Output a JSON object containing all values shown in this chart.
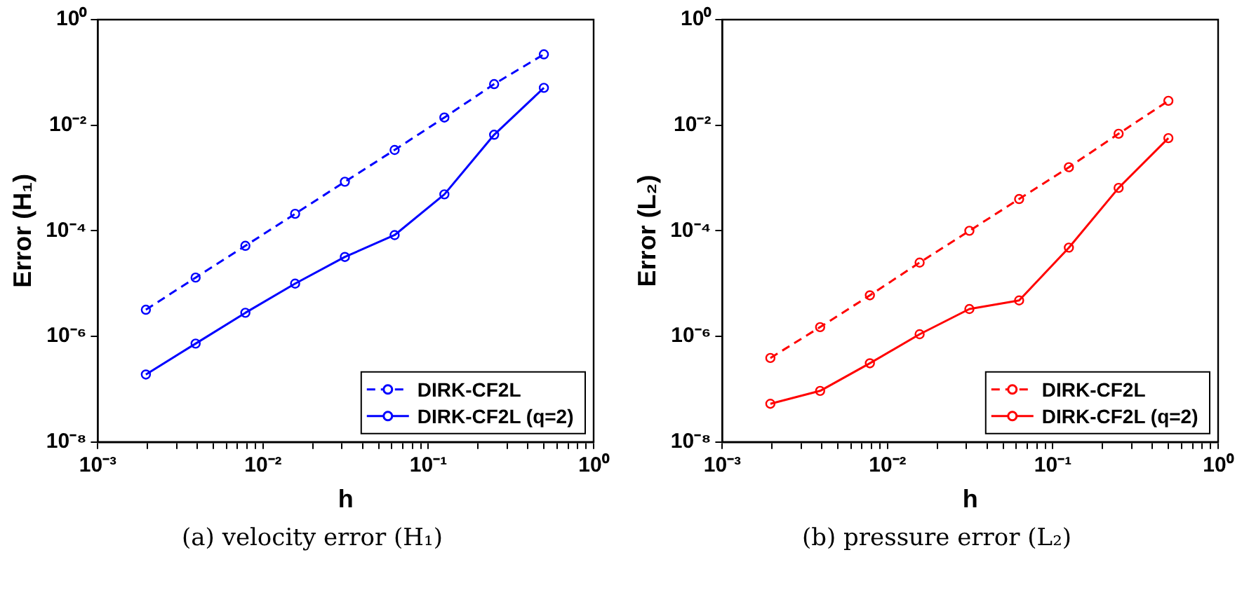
{
  "chart_data": [
    {
      "type": "line",
      "title": "(a) velocity error (H₁)",
      "xlabel": "h",
      "ylabel": "Error (H₁)",
      "log": "xy",
      "grid": false,
      "legend": "bottom right",
      "marker": "circle",
      "x": [
        0.001953125,
        0.00390625,
        0.0078125,
        0.015625,
        0.03125,
        0.0625,
        0.125,
        0.25,
        0.5
      ],
      "xlim": [
        0.001,
        1
      ],
      "ylim": [
        1e-08,
        1
      ],
      "xticks": [
        {
          "value": 0.001,
          "label": "10⁻³"
        },
        {
          "value": 0.002,
          "label": null
        },
        {
          "value": 0.003,
          "label": null
        },
        {
          "value": 0.004,
          "label": null
        },
        {
          "value": 0.005,
          "label": null
        },
        {
          "value": 0.006,
          "label": null
        },
        {
          "value": 0.007,
          "label": null
        },
        {
          "value": 0.008,
          "label": null
        },
        {
          "value": 0.009,
          "label": null
        },
        {
          "value": 0.01,
          "label": "10⁻²"
        },
        {
          "value": 0.02,
          "label": null
        },
        {
          "value": 0.03,
          "label": null
        },
        {
          "value": 0.04,
          "label": null
        },
        {
          "value": 0.05,
          "label": null
        },
        {
          "value": 0.06,
          "label": null
        },
        {
          "value": 0.07,
          "label": null
        },
        {
          "value": 0.08,
          "label": null
        },
        {
          "value": 0.09,
          "label": null
        },
        {
          "value": 0.1,
          "label": "10⁻¹"
        },
        {
          "value": 0.2,
          "label": null
        },
        {
          "value": 0.3,
          "label": null
        },
        {
          "value": 0.4,
          "label": null
        },
        {
          "value": 0.5,
          "label": null
        },
        {
          "value": 0.6,
          "label": null
        },
        {
          "value": 0.7,
          "label": null
        },
        {
          "value": 0.8,
          "label": null
        },
        {
          "value": 0.9,
          "label": null
        },
        {
          "value": 1,
          "label": "10⁰"
        }
      ],
      "yticks": [
        {
          "value": 1e-08,
          "label": "10⁻⁸"
        },
        {
          "value": 1e-06,
          "label": "10⁻⁶"
        },
        {
          "value": 0.0001,
          "label": "10⁻⁴"
        },
        {
          "value": 0.01,
          "label": "10⁻²"
        },
        {
          "value": 1,
          "label": "10⁰"
        }
      ],
      "series": [
        {
          "name": "DIRK-CF2L",
          "color": "#0000ff",
          "line_style": "dashed",
          "values": [
            3.2e-06,
            1.3e-05,
            5.2e-05,
            0.00021,
            0.00085,
            0.0034,
            0.014,
            0.06,
            0.22
          ]
        },
        {
          "name": "DIRK-CF2L (q=2)",
          "color": "#0000ff",
          "line_style": "solid",
          "values": [
            1.9e-07,
            7.3e-07,
            2.8e-06,
            1e-05,
            3.2e-05,
            8.3e-05,
            0.00049,
            0.0066,
            0.051
          ]
        }
      ]
    },
    {
      "type": "line",
      "title": "(b) pressure error (L₂)",
      "xlabel": "h",
      "ylabel": "Error (L₂)",
      "log": "xy",
      "grid": false,
      "legend": "bottom right",
      "marker": "circle",
      "x": [
        0.001953125,
        0.00390625,
        0.0078125,
        0.015625,
        0.03125,
        0.0625,
        0.125,
        0.25,
        0.5
      ],
      "xlim": [
        0.001,
        1
      ],
      "ylim": [
        1e-08,
        1
      ],
      "xticks": [
        {
          "value": 0.001,
          "label": "10⁻³"
        },
        {
          "value": 0.002,
          "label": null
        },
        {
          "value": 0.003,
          "label": null
        },
        {
          "value": 0.004,
          "label": null
        },
        {
          "value": 0.005,
          "label": null
        },
        {
          "value": 0.006,
          "label": null
        },
        {
          "value": 0.007,
          "label": null
        },
        {
          "value": 0.008,
          "label": null
        },
        {
          "value": 0.009,
          "label": null
        },
        {
          "value": 0.01,
          "label": "10⁻²"
        },
        {
          "value": 0.02,
          "label": null
        },
        {
          "value": 0.03,
          "label": null
        },
        {
          "value": 0.04,
          "label": null
        },
        {
          "value": 0.05,
          "label": null
        },
        {
          "value": 0.06,
          "label": null
        },
        {
          "value": 0.07,
          "label": null
        },
        {
          "value": 0.08,
          "label": null
        },
        {
          "value": 0.09,
          "label": null
        },
        {
          "value": 0.1,
          "label": "10⁻¹"
        },
        {
          "value": 0.2,
          "label": null
        },
        {
          "value": 0.3,
          "label": null
        },
        {
          "value": 0.4,
          "label": null
        },
        {
          "value": 0.5,
          "label": null
        },
        {
          "value": 0.6,
          "label": null
        },
        {
          "value": 0.7,
          "label": null
        },
        {
          "value": 0.8,
          "label": null
        },
        {
          "value": 0.9,
          "label": null
        },
        {
          "value": 1,
          "label": "10⁰"
        }
      ],
      "yticks": [
        {
          "value": 1e-08,
          "label": "10⁻⁸"
        },
        {
          "value": 1e-06,
          "label": "10⁻⁶"
        },
        {
          "value": 0.0001,
          "label": "10⁻⁴"
        },
        {
          "value": 0.01,
          "label": "10⁻²"
        },
        {
          "value": 1,
          "label": "10⁰"
        }
      ],
      "series": [
        {
          "name": "DIRK-CF2L",
          "color": "#ff0000",
          "line_style": "dashed",
          "values": [
            3.9e-07,
            1.5e-06,
            6e-06,
            2.5e-05,
            0.0001,
            0.0004,
            0.0016,
            0.0069,
            0.029
          ]
        },
        {
          "name": "DIRK-CF2L (q=2)",
          "color": "#ff0000",
          "line_style": "solid",
          "values": [
            5.3e-08,
            9.3e-08,
            3.1e-07,
            1.1e-06,
            3.3e-06,
            4.8e-06,
            4.8e-05,
            0.00065,
            0.0057
          ]
        }
      ]
    }
  ]
}
